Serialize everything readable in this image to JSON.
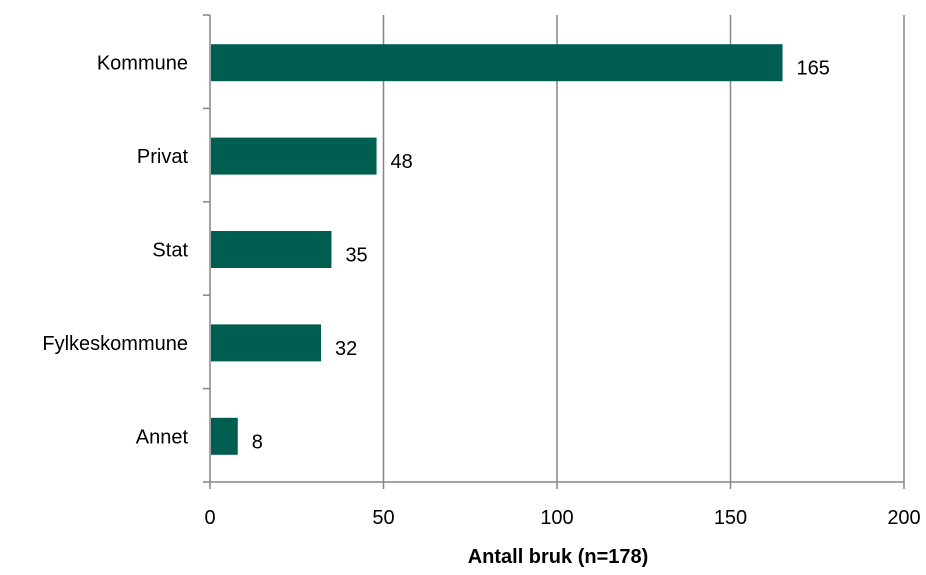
{
  "chart_data": {
    "type": "bar",
    "orientation": "horizontal",
    "categories": [
      "Kommune",
      "Privat",
      "Stat",
      "Fylkeskommune",
      "Annet"
    ],
    "values": [
      165,
      48,
      35,
      32,
      8
    ],
    "data_labels": [
      "165",
      "48",
      "35",
      "32",
      "8"
    ],
    "xlabel": "Antall bruk (n=178)",
    "ylabel": "",
    "xlim": [
      0,
      200
    ],
    "x_ticks": [
      0,
      50,
      100,
      150,
      200
    ],
    "x_tick_labels": [
      "0",
      "50",
      "100",
      "150",
      "200"
    ],
    "grid": "vertical",
    "legend": "none",
    "colors": {
      "bar": "#005E51",
      "grid": "#868686",
      "axis": "#868686"
    }
  }
}
